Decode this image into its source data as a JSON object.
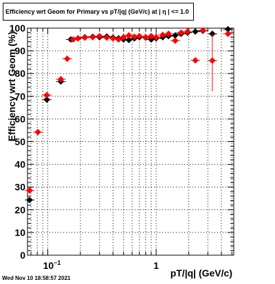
{
  "title": "Efficiency wrt Geom for Primary vs pT/|q| (GeV/c) at |  η  | <= 1.0",
  "datestamp": "Wed Nov 10 18:58:57 2021",
  "colors": {
    "series_black": "#000000",
    "series_red": "#ff0000",
    "axis": "#000000"
  },
  "chart_data": {
    "type": "scatter",
    "title": "Efficiency wrt Geom for Primary vs pT/|q| (GeV/c) at |  η  | <= 1.0",
    "xlabel": "pT/|q| (GeV/c)",
    "ylabel": "Efficiency wrt Geom (%)",
    "xscale": "log",
    "xlim": [
      0.065,
      5.2
    ],
    "ylim": [
      0,
      100
    ],
    "grid": true,
    "x_tick_labels": [
      {
        "value": 0.1,
        "base": "10",
        "exp": "−1"
      },
      {
        "value": 1,
        "base": "1",
        "exp": ""
      }
    ],
    "y_tick_labels": [
      "0",
      "10",
      "20",
      "30",
      "40",
      "50",
      "60",
      "70",
      "80",
      "90",
      "100"
    ],
    "series": [
      {
        "color": "#000000",
        "marker": "diamond",
        "points": [
          {
            "x": 0.068,
            "y": 24.3
          },
          {
            "x": 0.098,
            "y": 68.5
          },
          {
            "x": 0.132,
            "y": 76.5
          },
          {
            "x": 0.163,
            "y": 95.0
          },
          {
            "x": 0.19,
            "y": 95.5
          },
          {
            "x": 0.22,
            "y": 96.0
          },
          {
            "x": 0.26,
            "y": 96.2
          },
          {
            "x": 0.3,
            "y": 96.0
          },
          {
            "x": 0.35,
            "y": 96.3
          },
          {
            "x": 0.4,
            "y": 95.8
          },
          {
            "x": 0.45,
            "y": 95.5
          },
          {
            "x": 0.5,
            "y": 95.0
          },
          {
            "x": 0.56,
            "y": 94.8
          },
          {
            "x": 0.63,
            "y": 95.5
          },
          {
            "x": 0.7,
            "y": 96.0
          },
          {
            "x": 0.8,
            "y": 95.8
          },
          {
            "x": 0.9,
            "y": 95.0
          },
          {
            "x": 1.0,
            "y": 95.5
          },
          {
            "x": 1.15,
            "y": 96.0
          },
          {
            "x": 1.3,
            "y": 96.5
          },
          {
            "x": 1.5,
            "y": 96.8
          },
          {
            "x": 1.7,
            "y": 97.5
          },
          {
            "x": 1.95,
            "y": 98.0
          },
          {
            "x": 2.3,
            "y": 98.5
          },
          {
            "x": 2.7,
            "y": 98.8
          },
          {
            "x": 3.3,
            "y": 97.5
          },
          {
            "x": 4.6,
            "y": 99.5
          }
        ]
      },
      {
        "color": "#ff0000",
        "marker": "diamond",
        "points": [
          {
            "x": 0.068,
            "y": 28.5
          },
          {
            "x": 0.081,
            "y": 54.2
          },
          {
            "x": 0.098,
            "y": 70.5
          },
          {
            "x": 0.132,
            "y": 77.5
          },
          {
            "x": 0.151,
            "y": 86.5
          },
          {
            "x": 0.172,
            "y": 95.0
          },
          {
            "x": 0.19,
            "y": 95.5
          },
          {
            "x": 0.22,
            "y": 95.8
          },
          {
            "x": 0.26,
            "y": 96.0
          },
          {
            "x": 0.3,
            "y": 96.5
          },
          {
            "x": 0.35,
            "y": 95.8
          },
          {
            "x": 0.4,
            "y": 95.5
          },
          {
            "x": 0.45,
            "y": 95.0
          },
          {
            "x": 0.5,
            "y": 96.0
          },
          {
            "x": 0.56,
            "y": 96.8
          },
          {
            "x": 0.63,
            "y": 96.2
          },
          {
            "x": 0.7,
            "y": 96.5
          },
          {
            "x": 0.8,
            "y": 96.0
          },
          {
            "x": 0.9,
            "y": 96.5
          },
          {
            "x": 1.0,
            "y": 96.0
          },
          {
            "x": 1.15,
            "y": 97.0
          },
          {
            "x": 1.3,
            "y": 97.5
          },
          {
            "x": 1.5,
            "y": 94.5
          },
          {
            "x": 1.7,
            "y": 98.0
          },
          {
            "x": 1.95,
            "y": 98.5
          },
          {
            "x": 2.3,
            "y": 85.8
          },
          {
            "x": 2.7,
            "y": 99.0
          },
          {
            "x": 3.3,
            "y": 85.7,
            "err_low": 13.5,
            "err_high": 12.0
          },
          {
            "x": 4.6,
            "y": 97.5
          }
        ]
      }
    ]
  }
}
